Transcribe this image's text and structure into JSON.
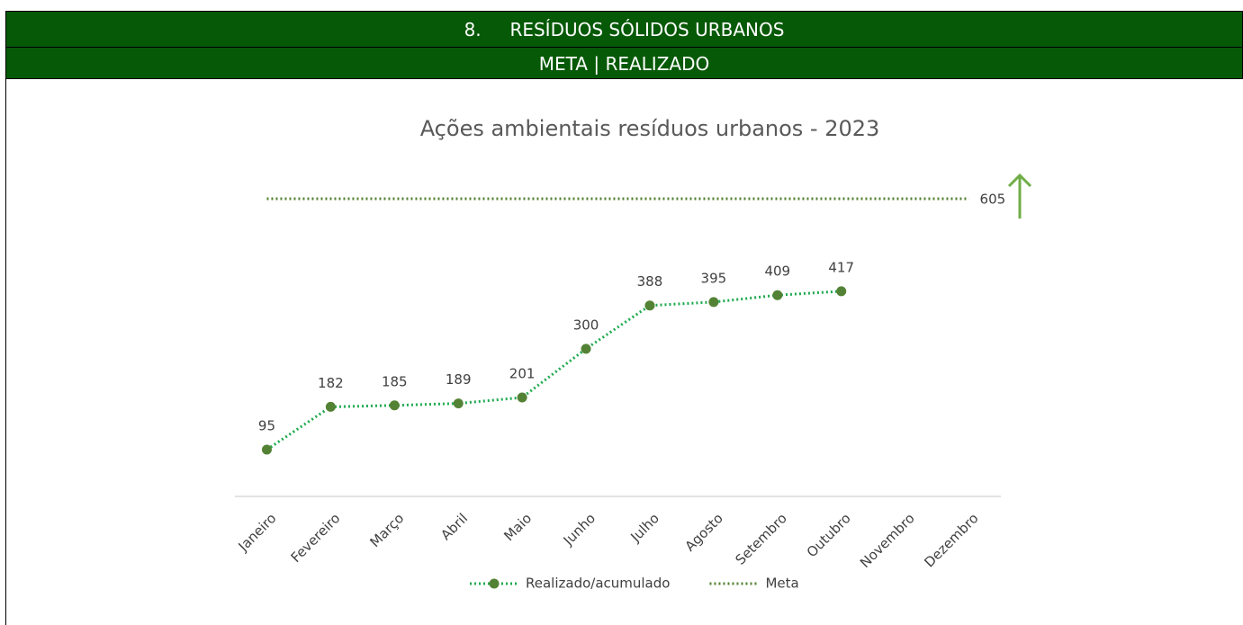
{
  "header": {
    "number": "8.",
    "title": "RESÍDUOS SÓLIDOS URBANOS",
    "subtitle": "META | REALIZADO"
  },
  "chart_data": {
    "type": "line",
    "title": "Ações ambientais resíduos urbanos - 2023",
    "categories": [
      "Janeiro",
      "Fevereiro",
      "Março",
      "Abril",
      "Maio",
      "Junho",
      "Julho",
      "Agosto",
      "Setembro",
      "Outubro",
      "Novembro",
      "Dezembro"
    ],
    "series": [
      {
        "name": "Realizado/acumulado",
        "color": "#1faa4f",
        "marker_color": "#548235",
        "marker": true,
        "data_labels": "all",
        "values": [
          95,
          182,
          185,
          189,
          201,
          300,
          388,
          395,
          409,
          417,
          null,
          null
        ]
      },
      {
        "name": "Meta",
        "color": "#548235",
        "marker": false,
        "data_labels": "last",
        "values": [
          605,
          605,
          605,
          605,
          605,
          605,
          605,
          605,
          605,
          605,
          605,
          605
        ]
      }
    ],
    "ylim": [
      0,
      700
    ],
    "grid": false,
    "legend": "bottom"
  }
}
